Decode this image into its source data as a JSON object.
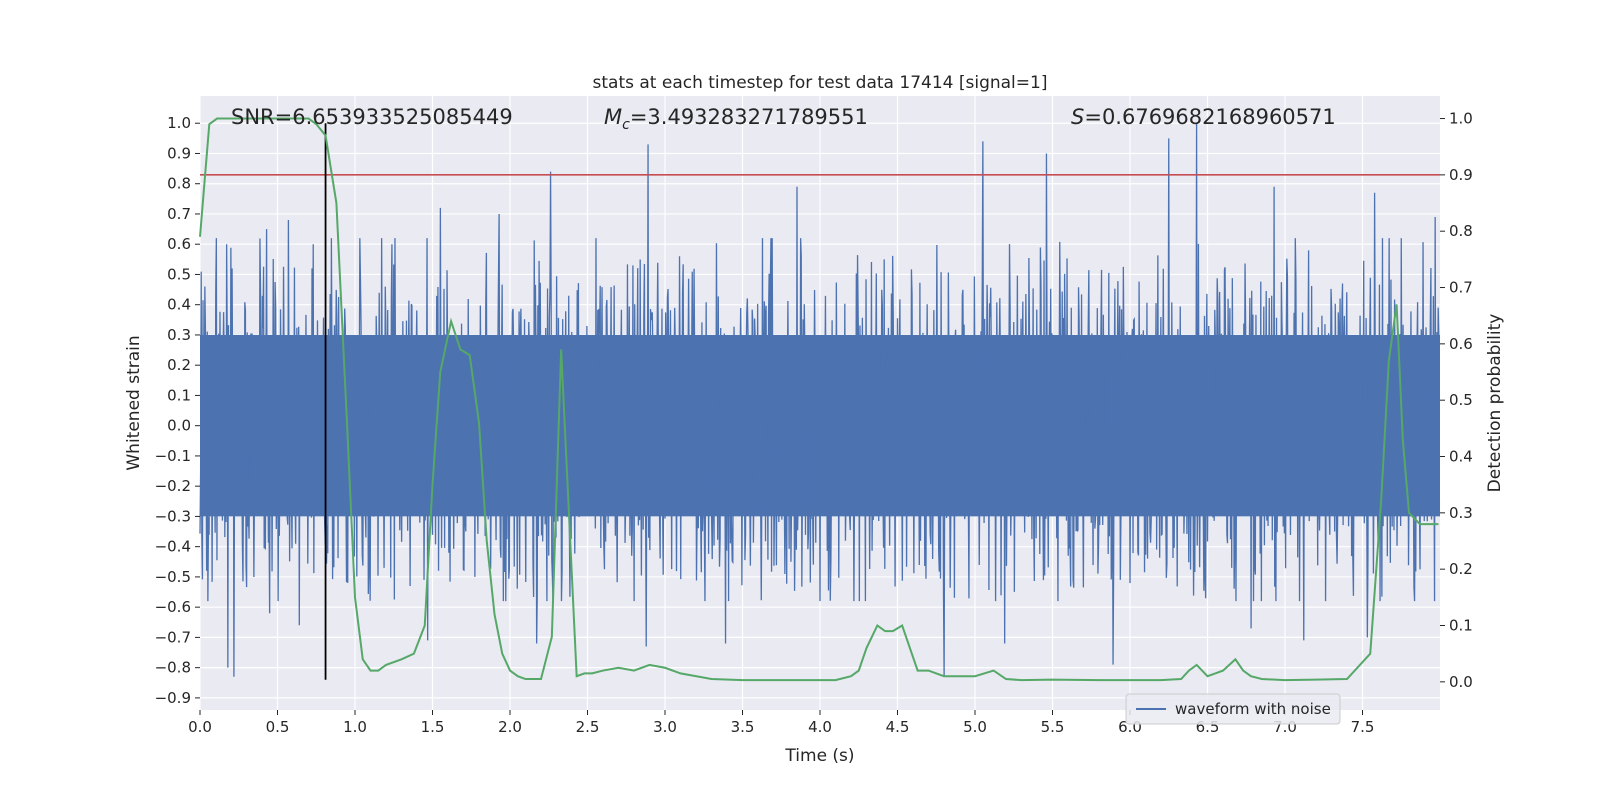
{
  "chart_data": {
    "type": "line",
    "title": "stats at each timestep for test data 17414 [signal=1]",
    "xlabel": "Time (s)",
    "ylabel": "Whitened strain",
    "ylabel_right": "Detection probability",
    "xlim": [
      0.0,
      8.0
    ],
    "ylim": [
      -0.94,
      1.09
    ],
    "ylim_right": [
      -0.05,
      1.04
    ],
    "x_ticks": [
      0.0,
      0.5,
      1.0,
      1.5,
      2.0,
      2.5,
      3.0,
      3.5,
      4.0,
      4.5,
      5.0,
      5.5,
      6.0,
      6.5,
      7.0,
      7.5
    ],
    "x_tick_labels": [
      "0.0",
      "0.5",
      "1.0",
      "1.5",
      "2.0",
      "2.5",
      "3.0",
      "3.5",
      "4.0",
      "4.5",
      "5.0",
      "5.5",
      "6.0",
      "6.5",
      "7.0",
      "7.5"
    ],
    "y_ticks": [
      1.0,
      0.9,
      0.8,
      0.7,
      0.6,
      0.5,
      0.4,
      0.3,
      0.2,
      0.1,
      0.0,
      -0.1,
      -0.2,
      -0.3,
      -0.4,
      -0.5,
      -0.6,
      -0.7,
      -0.8,
      -0.9
    ],
    "y_tick_labels": [
      "1.0",
      "0.9",
      "0.8",
      "0.7",
      "0.6",
      "0.5",
      "0.4",
      "0.3",
      "0.2",
      "0.1",
      "0.0",
      "−0.1",
      "−0.2",
      "−0.3",
      "−0.4",
      "−0.5",
      "−0.6",
      "−0.7",
      "−0.8",
      "−0.9"
    ],
    "y_right_ticks": [
      1.0,
      0.9,
      0.8,
      0.7,
      0.6,
      0.5,
      0.4,
      0.3,
      0.2,
      0.1,
      0.0
    ],
    "y_right_tick_labels": [
      "1.0",
      "0.9",
      "0.8",
      "0.7",
      "0.6",
      "0.5",
      "0.4",
      "0.3",
      "0.2",
      "0.1",
      "0.0"
    ],
    "annotations": {
      "snr": "SNR=6.653933525085449",
      "mc_symbol": "M",
      "mc_sub": "c",
      "mc_value": "=3.493283271789551",
      "s_symbol": "S",
      "s_value": "=0.6769682168960571"
    },
    "legend": {
      "label": "waveform with noise",
      "position": "lower-right"
    },
    "threshold_right": 0.9,
    "marker_time": 0.81,
    "marker_range": [
      -0.84,
      1.0
    ],
    "waveform": {
      "name": "waveform with noise",
      "color": "#4c72b0",
      "sample_count": 2048,
      "seed": 17414,
      "core_amplitude": 0.3,
      "peaks": [
        [
          0.03,
          0.46
        ],
        [
          0.17,
          0.6
        ],
        [
          0.43,
          0.65
        ],
        [
          0.57,
          0.68
        ],
        [
          0.73,
          0.6
        ],
        [
          1.24,
          0.6
        ],
        [
          1.55,
          0.72
        ],
        [
          1.93,
          0.7
        ],
        [
          2.26,
          0.84
        ],
        [
          2.89,
          0.93
        ],
        [
          3.85,
          0.79
        ],
        [
          5.05,
          0.94
        ],
        [
          5.46,
          0.9
        ],
        [
          6.25,
          0.95
        ],
        [
          6.43,
          1.0
        ],
        [
          6.93,
          0.79
        ],
        [
          7.58,
          0.77
        ],
        [
          7.97,
          0.69
        ]
      ],
      "troughs": [
        [
          0.18,
          -0.8
        ],
        [
          0.22,
          -0.83
        ],
        [
          0.45,
          -0.62
        ],
        [
          0.64,
          -0.66
        ],
        [
          1.47,
          -0.71
        ],
        [
          2.17,
          -0.72
        ],
        [
          2.88,
          -0.73
        ],
        [
          3.39,
          -0.72
        ],
        [
          4.8,
          -0.83
        ],
        [
          5.19,
          -0.72
        ],
        [
          5.89,
          -0.79
        ],
        [
          6.78,
          -0.67
        ],
        [
          7.12,
          -0.71
        ],
        [
          7.53,
          -0.7
        ]
      ]
    },
    "detection": {
      "name": "detection probability",
      "color": "#55a868",
      "x": [
        0.0,
        0.06,
        0.11,
        0.2,
        0.35,
        0.5,
        0.6,
        0.7,
        0.75,
        0.81,
        0.88,
        0.95,
        1.0,
        1.05,
        1.1,
        1.15,
        1.2,
        1.3,
        1.38,
        1.45,
        1.5,
        1.55,
        1.62,
        1.68,
        1.74,
        1.8,
        1.85,
        1.9,
        1.95,
        2.0,
        2.05,
        2.1,
        2.2,
        2.27,
        2.33,
        2.38,
        2.43,
        2.48,
        2.53,
        2.6,
        2.7,
        2.8,
        2.9,
        3.0,
        3.1,
        3.3,
        3.5,
        3.8,
        4.1,
        4.2,
        4.25,
        4.3,
        4.37,
        4.42,
        4.47,
        4.53,
        4.63,
        4.7,
        4.8,
        4.9,
        5.0,
        5.12,
        5.2,
        5.3,
        5.5,
        5.8,
        6.0,
        6.2,
        6.33,
        6.38,
        6.43,
        6.5,
        6.55,
        6.6,
        6.68,
        6.73,
        6.78,
        6.85,
        7.0,
        7.2,
        7.4,
        7.55,
        7.62,
        7.67,
        7.72,
        7.76,
        7.8,
        7.87,
        7.93,
        7.99
      ],
      "y": [
        0.79,
        0.99,
        1.0,
        1.0,
        1.0,
        1.0,
        1.0,
        1.0,
        0.99,
        0.97,
        0.85,
        0.45,
        0.15,
        0.04,
        0.02,
        0.02,
        0.03,
        0.04,
        0.05,
        0.1,
        0.35,
        0.55,
        0.64,
        0.59,
        0.58,
        0.46,
        0.25,
        0.12,
        0.05,
        0.02,
        0.01,
        0.005,
        0.005,
        0.08,
        0.59,
        0.3,
        0.01,
        0.015,
        0.015,
        0.02,
        0.025,
        0.02,
        0.03,
        0.025,
        0.015,
        0.005,
        0.003,
        0.003,
        0.003,
        0.01,
        0.02,
        0.06,
        0.1,
        0.09,
        0.09,
        0.1,
        0.02,
        0.02,
        0.01,
        0.01,
        0.01,
        0.02,
        0.005,
        0.003,
        0.004,
        0.003,
        0.003,
        0.003,
        0.005,
        0.02,
        0.03,
        0.01,
        0.015,
        0.02,
        0.04,
        0.02,
        0.01,
        0.005,
        0.003,
        0.004,
        0.005,
        0.05,
        0.32,
        0.57,
        0.67,
        0.43,
        0.3,
        0.28,
        0.28,
        0.28
      ]
    }
  },
  "colors": {
    "axes_bg": "#eaeaf2",
    "grid": "#ffffff",
    "threshold": "#c44e52",
    "marker": "#000000"
  }
}
